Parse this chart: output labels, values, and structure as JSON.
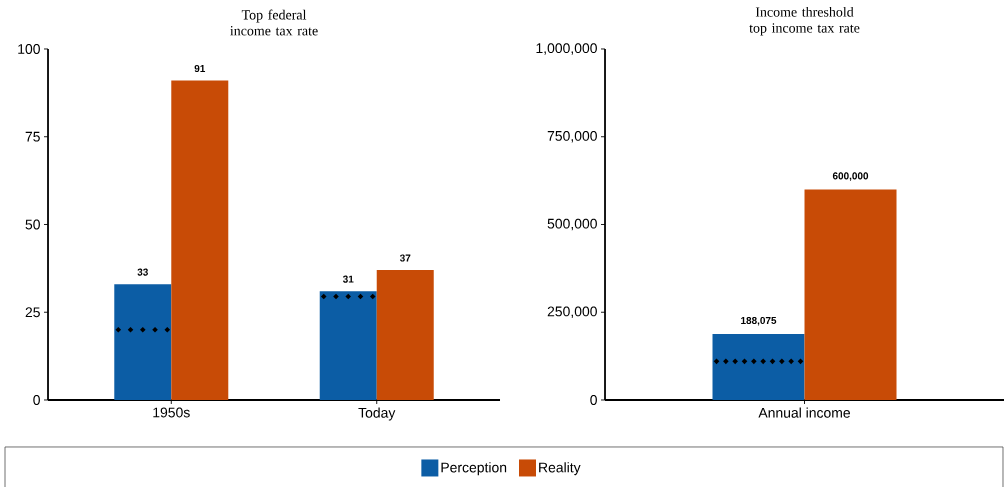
{
  "chart_data": [
    {
      "type": "bar",
      "title": "Top federal income tax rate",
      "categories": [
        "1950s",
        "Today"
      ],
      "series": [
        {
          "name": "Perception",
          "color": "#0c5da5",
          "values": [
            33,
            31
          ],
          "value_labels": [
            "33",
            "31"
          ]
        },
        {
          "name": "Reality",
          "color": "#c84b06",
          "values": [
            91,
            37
          ],
          "value_labels": [
            "91",
            "37"
          ]
        },
        {
          "type": "scatter",
          "color": "#000000",
          "x": [
            "1950s",
            "1950s",
            "1950s",
            "1950s",
            "1950s",
            "Today",
            "Today",
            "Today",
            "Today",
            "Today"
          ],
          "values": [
            20,
            20,
            20,
            20,
            20,
            29.5,
            29.5,
            29.5,
            29.5,
            29.5
          ],
          "marker": "diamond"
        }
      ],
      "ylim": [
        0,
        100
      ],
      "yticks": [
        0,
        25,
        50,
        75,
        100
      ],
      "legend": "bottom"
    },
    {
      "type": "bar",
      "title": "Income threshold top income tax rate",
      "categories": [
        "Annual income"
      ],
      "series": [
        {
          "color": "#0c5da5",
          "values": [
            188075
          ],
          "value_labels": [
            "188,075"
          ]
        },
        {
          "color": "#c84b06",
          "values": [
            600000
          ],
          "value_labels": [
            "600,000"
          ]
        },
        {
          "type": "scatter",
          "color": "#000000",
          "x": [
            "Annual income",
            "Annual income",
            "Annual income",
            "Annual income",
            "Annual income",
            "Annual income",
            "Annual income",
            "Annual income",
            "Annual income",
            "Annual income"
          ],
          "values": [
            110000,
            110000,
            110000,
            110000,
            110000,
            110000,
            110000,
            110000,
            110000,
            110000
          ],
          "marker": "diamond"
        }
      ],
      "ylim": [
        0,
        1000000
      ],
      "yticks": [
        {
          "value": 0,
          "label": "0"
        },
        {
          "value": 250000,
          "label": "250,000"
        },
        {
          "value": 500000,
          "label": "500,000"
        },
        {
          "value": 750000,
          "label": "750,000"
        },
        {
          "value": 1000000,
          "label": "1,000,000"
        }
      ]
    }
  ]
}
